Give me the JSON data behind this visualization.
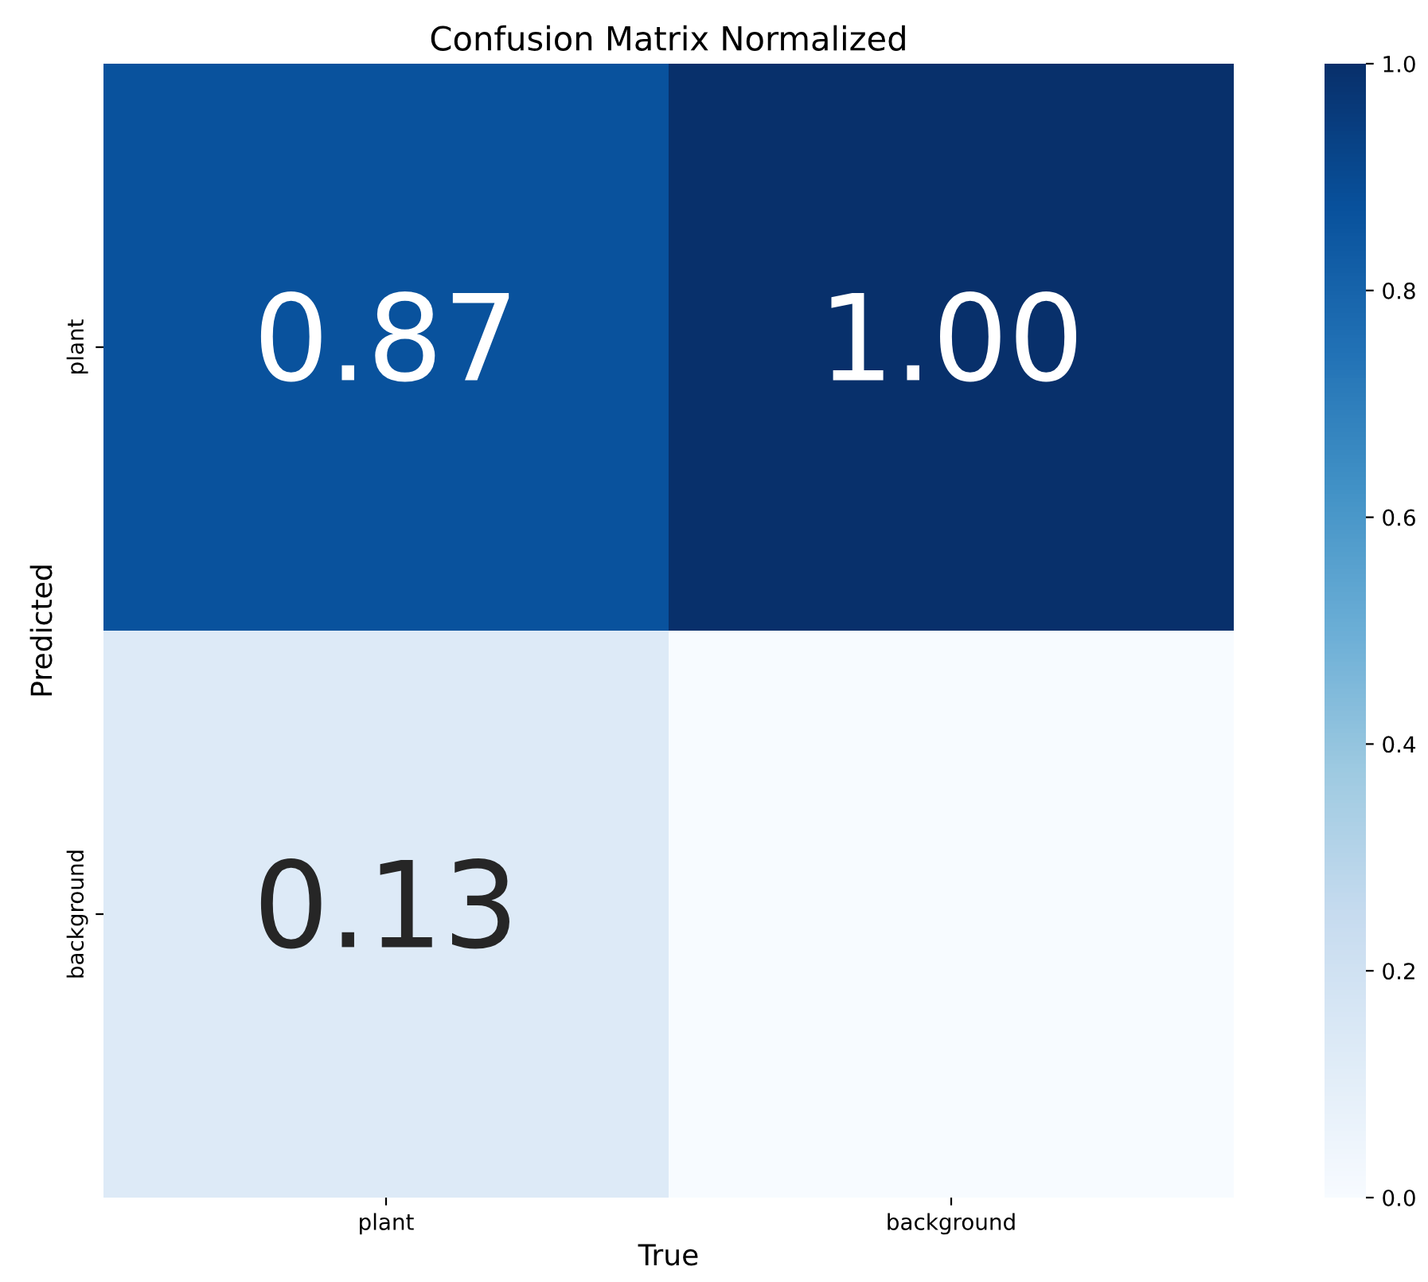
{
  "chart_data": {
    "type": "heatmap",
    "title": "Confusion Matrix Normalized",
    "xlabel": "True",
    "ylabel": "Predicted",
    "categories": [
      "plant",
      "background"
    ],
    "y_categories": [
      "plant",
      "background"
    ],
    "cells": [
      [
        0.87,
        1.0
      ],
      [
        0.13,
        0.0
      ]
    ],
    "cell_labels": [
      [
        "0.87",
        "1.00"
      ],
      [
        "0.13",
        null
      ]
    ],
    "clim": [
      0.0,
      1.0
    ],
    "cticks": [
      {
        "value": 0.0,
        "label": "0.0"
      },
      {
        "value": 0.2,
        "label": "0.2"
      },
      {
        "value": 0.4,
        "label": "0.4"
      },
      {
        "value": 0.6,
        "label": "0.6"
      },
      {
        "value": 0.8,
        "label": "0.8"
      },
      {
        "value": 1.0,
        "label": "1.0"
      }
    ]
  }
}
